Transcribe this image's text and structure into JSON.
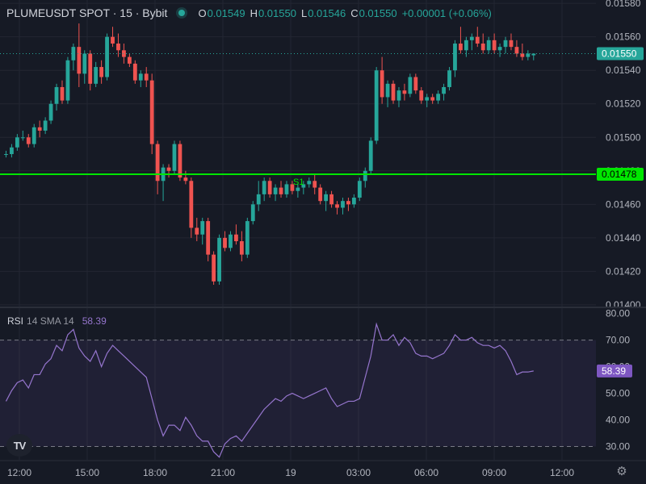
{
  "header": {
    "symbol": "PLUMEUSDT SPOT · 15 · Bybit",
    "open_label": "O",
    "open": "0.01549",
    "high_label": "H",
    "high": "0.01550",
    "low_label": "L",
    "low": "0.01546",
    "close_label": "C",
    "close": "0.01550",
    "change": "+0.00001 (+0.06%)",
    "status_color": "#26a69a"
  },
  "colors": {
    "up": "#26a69a",
    "down": "#ef5350",
    "support": "#00e600",
    "rsi_line": "#9575cd",
    "background": "#161a25",
    "grid": "#232632"
  },
  "chart_data": [
    {
      "type": "candlestick",
      "title": "PLUMEUSDT SPOT · 15 · Bybit",
      "x_tick_labels": [
        "12:00",
        "15:00",
        "18:00",
        "21:00",
        "19",
        "03:00",
        "06:00",
        "09:00",
        "12:00"
      ],
      "y_tick_labels": [
        "0.01580",
        "0.01560",
        "0.01540",
        "0.01520",
        "0.01500",
        "0.01480",
        "0.01460",
        "0.01440",
        "0.01420",
        "0.01400"
      ],
      "ylim": [
        0.01399,
        0.01582
      ],
      "grid": true,
      "last_price": "0.01550",
      "support_level": {
        "label": "S1",
        "price": "0.01478",
        "value": 0.01478
      },
      "candles": [
        [
          0.0149,
          0.01492,
          0.01488,
          0.0149
        ],
        [
          0.0149,
          0.01496,
          0.01488,
          0.01494
        ],
        [
          0.01494,
          0.01502,
          0.01492,
          0.015
        ],
        [
          0.015,
          0.01504,
          0.01498,
          0.015
        ],
        [
          0.015,
          0.01502,
          0.01494,
          0.01496
        ],
        [
          0.01496,
          0.01508,
          0.01494,
          0.01506
        ],
        [
          0.01506,
          0.0151,
          0.015,
          0.01504
        ],
        [
          0.01504,
          0.01512,
          0.01502,
          0.0151
        ],
        [
          0.0151,
          0.01522,
          0.01508,
          0.0152
        ],
        [
          0.0152,
          0.01532,
          0.01516,
          0.0153
        ],
        [
          0.0153,
          0.01534,
          0.0152,
          0.01522
        ],
        [
          0.01522,
          0.01548,
          0.0152,
          0.01546
        ],
        [
          0.01546,
          0.01556,
          0.0154,
          0.01554
        ],
        [
          0.01554,
          0.01568,
          0.0153,
          0.01538
        ],
        [
          0.01538,
          0.01552,
          0.01532,
          0.0155
        ],
        [
          0.0155,
          0.01552,
          0.01528,
          0.01532
        ],
        [
          0.01532,
          0.01545,
          0.0153,
          0.01542
        ],
        [
          0.01542,
          0.01546,
          0.01532,
          0.01536
        ],
        [
          0.01536,
          0.01562,
          0.01534,
          0.0156
        ],
        [
          0.0156,
          0.01566,
          0.01554,
          0.01556
        ],
        [
          0.01556,
          0.01562,
          0.01548,
          0.01552
        ],
        [
          0.01552,
          0.01556,
          0.01544,
          0.01548
        ],
        [
          0.01548,
          0.0155,
          0.01542,
          0.01544
        ],
        [
          0.01544,
          0.01546,
          0.01532,
          0.01534
        ],
        [
          0.01534,
          0.0154,
          0.0153,
          0.01538
        ],
        [
          0.01538,
          0.01542,
          0.0153,
          0.01534
        ],
        [
          0.01534,
          0.01538,
          0.0149,
          0.01496
        ],
        [
          0.01496,
          0.01498,
          0.01466,
          0.01474
        ],
        [
          0.01474,
          0.01484,
          0.01462,
          0.01482
        ],
        [
          0.01482,
          0.01484,
          0.01476,
          0.0148
        ],
        [
          0.0148,
          0.01498,
          0.01478,
          0.01496
        ],
        [
          0.01496,
          0.01498,
          0.01474,
          0.01476
        ],
        [
          0.01476,
          0.0148,
          0.01472,
          0.01474
        ],
        [
          0.01474,
          0.01476,
          0.0144,
          0.01446
        ],
        [
          0.01446,
          0.01452,
          0.01438,
          0.01442
        ],
        [
          0.01442,
          0.01452,
          0.01436,
          0.0145
        ],
        [
          0.0145,
          0.01452,
          0.01426,
          0.0143
        ],
        [
          0.0143,
          0.01432,
          0.01412,
          0.01414
        ],
        [
          0.01414,
          0.01442,
          0.01412,
          0.0144
        ],
        [
          0.0144,
          0.01444,
          0.01432,
          0.01434
        ],
        [
          0.01434,
          0.01444,
          0.01432,
          0.01442
        ],
        [
          0.01442,
          0.01448,
          0.01436,
          0.01438
        ],
        [
          0.01438,
          0.01444,
          0.01426,
          0.0143
        ],
        [
          0.0143,
          0.01452,
          0.01428,
          0.0145
        ],
        [
          0.0145,
          0.01462,
          0.01448,
          0.0146
        ],
        [
          0.0146,
          0.01474,
          0.01456,
          0.01466
        ],
        [
          0.01466,
          0.01476,
          0.01462,
          0.01474
        ],
        [
          0.01474,
          0.01476,
          0.01464,
          0.01466
        ],
        [
          0.01466,
          0.01472,
          0.01462,
          0.0147
        ],
        [
          0.0147,
          0.01474,
          0.01464,
          0.01466
        ],
        [
          0.01466,
          0.01474,
          0.01464,
          0.01472
        ],
        [
          0.01472,
          0.01474,
          0.01466,
          0.01468
        ],
        [
          0.01468,
          0.01472,
          0.01464,
          0.0147
        ],
        [
          0.0147,
          0.01474,
          0.01466,
          0.01472
        ],
        [
          0.01472,
          0.01476,
          0.0147,
          0.01474
        ],
        [
          0.01474,
          0.01478,
          0.01466,
          0.0147
        ],
        [
          0.0147,
          0.01472,
          0.0146,
          0.01462
        ],
        [
          0.01462,
          0.01468,
          0.01456,
          0.01466
        ],
        [
          0.01466,
          0.01468,
          0.01458,
          0.0146
        ],
        [
          0.0146,
          0.01462,
          0.01454,
          0.01458
        ],
        [
          0.01458,
          0.01464,
          0.01454,
          0.01462
        ],
        [
          0.01462,
          0.01464,
          0.01456,
          0.0146
        ],
        [
          0.0146,
          0.01466,
          0.01458,
          0.01464
        ],
        [
          0.01464,
          0.01476,
          0.01462,
          0.01474
        ],
        [
          0.01474,
          0.01482,
          0.0147,
          0.0148
        ],
        [
          0.0148,
          0.015,
          0.01478,
          0.01498
        ],
        [
          0.01498,
          0.01542,
          0.01496,
          0.0154
        ],
        [
          0.0154,
          0.01548,
          0.0152,
          0.01524
        ],
        [
          0.01524,
          0.01534,
          0.01518,
          0.01532
        ],
        [
          0.01532,
          0.01534,
          0.0152,
          0.01522
        ],
        [
          0.01522,
          0.0153,
          0.01518,
          0.01528
        ],
        [
          0.01528,
          0.01532,
          0.01522,
          0.01526
        ],
        [
          0.01526,
          0.01538,
          0.01524,
          0.01536
        ],
        [
          0.01536,
          0.01538,
          0.01526,
          0.01528
        ],
        [
          0.01528,
          0.0153,
          0.0152,
          0.01522
        ],
        [
          0.01522,
          0.01526,
          0.01518,
          0.01524
        ],
        [
          0.01524,
          0.01526,
          0.0152,
          0.01522
        ],
        [
          0.01522,
          0.01528,
          0.0152,
          0.01526
        ],
        [
          0.01526,
          0.01532,
          0.01522,
          0.0153
        ],
        [
          0.0153,
          0.01542,
          0.01528,
          0.0154
        ],
        [
          0.0154,
          0.01558,
          0.01536,
          0.01556
        ],
        [
          0.01556,
          0.01566,
          0.0155,
          0.01552
        ],
        [
          0.01552,
          0.0156,
          0.01548,
          0.01558
        ],
        [
          0.01558,
          0.01562,
          0.01552,
          0.0156
        ],
        [
          0.0156,
          0.01566,
          0.01554,
          0.01556
        ],
        [
          0.01556,
          0.01562,
          0.0155,
          0.01552
        ],
        [
          0.01552,
          0.0156,
          0.0155,
          0.01558
        ],
        [
          0.01558,
          0.01562,
          0.0155,
          0.01552
        ],
        [
          0.01552,
          0.01556,
          0.01548,
          0.01554
        ],
        [
          0.01554,
          0.0156,
          0.0155,
          0.01558
        ],
        [
          0.01558,
          0.01562,
          0.01552,
          0.01554
        ],
        [
          0.01554,
          0.01558,
          0.01548,
          0.0155
        ],
        [
          0.0155,
          0.01556,
          0.01546,
          0.01548
        ],
        [
          0.01548,
          0.01552,
          0.01546,
          0.0155
        ],
        [
          0.01549,
          0.0155,
          0.01546,
          0.0155
        ]
      ]
    },
    {
      "type": "line",
      "legend_name": "RSI",
      "legend_params": "14 SMA 14",
      "legend_value": "58.39",
      "last_value": "58.39",
      "ylim": [
        25,
        82
      ],
      "y_tick_labels": [
        "80.00",
        "70.00",
        "60.00",
        "50.00",
        "40.00",
        "30.00"
      ],
      "levels": [
        70,
        30
      ],
      "values": [
        47,
        51,
        54,
        55,
        52,
        57,
        57,
        61,
        63,
        68,
        66,
        72,
        74,
        67,
        64,
        62,
        66,
        60,
        65,
        68,
        66,
        64,
        62,
        60,
        58,
        56,
        48,
        40,
        34,
        38,
        38,
        36,
        41,
        38,
        34,
        32,
        32,
        28,
        26,
        31,
        33,
        34,
        32,
        35,
        38,
        41,
        44,
        46,
        48,
        47,
        49,
        50,
        49,
        48,
        49,
        50,
        51,
        52,
        48,
        45,
        46,
        47,
        47,
        48,
        56,
        64,
        76,
        70,
        70,
        72,
        68,
        71,
        69,
        65,
        64,
        64,
        63,
        64,
        65,
        68,
        72,
        70,
        70,
        71,
        69,
        68,
        68,
        67,
        68,
        66,
        62,
        57,
        58,
        58,
        58.39
      ]
    }
  ]
}
